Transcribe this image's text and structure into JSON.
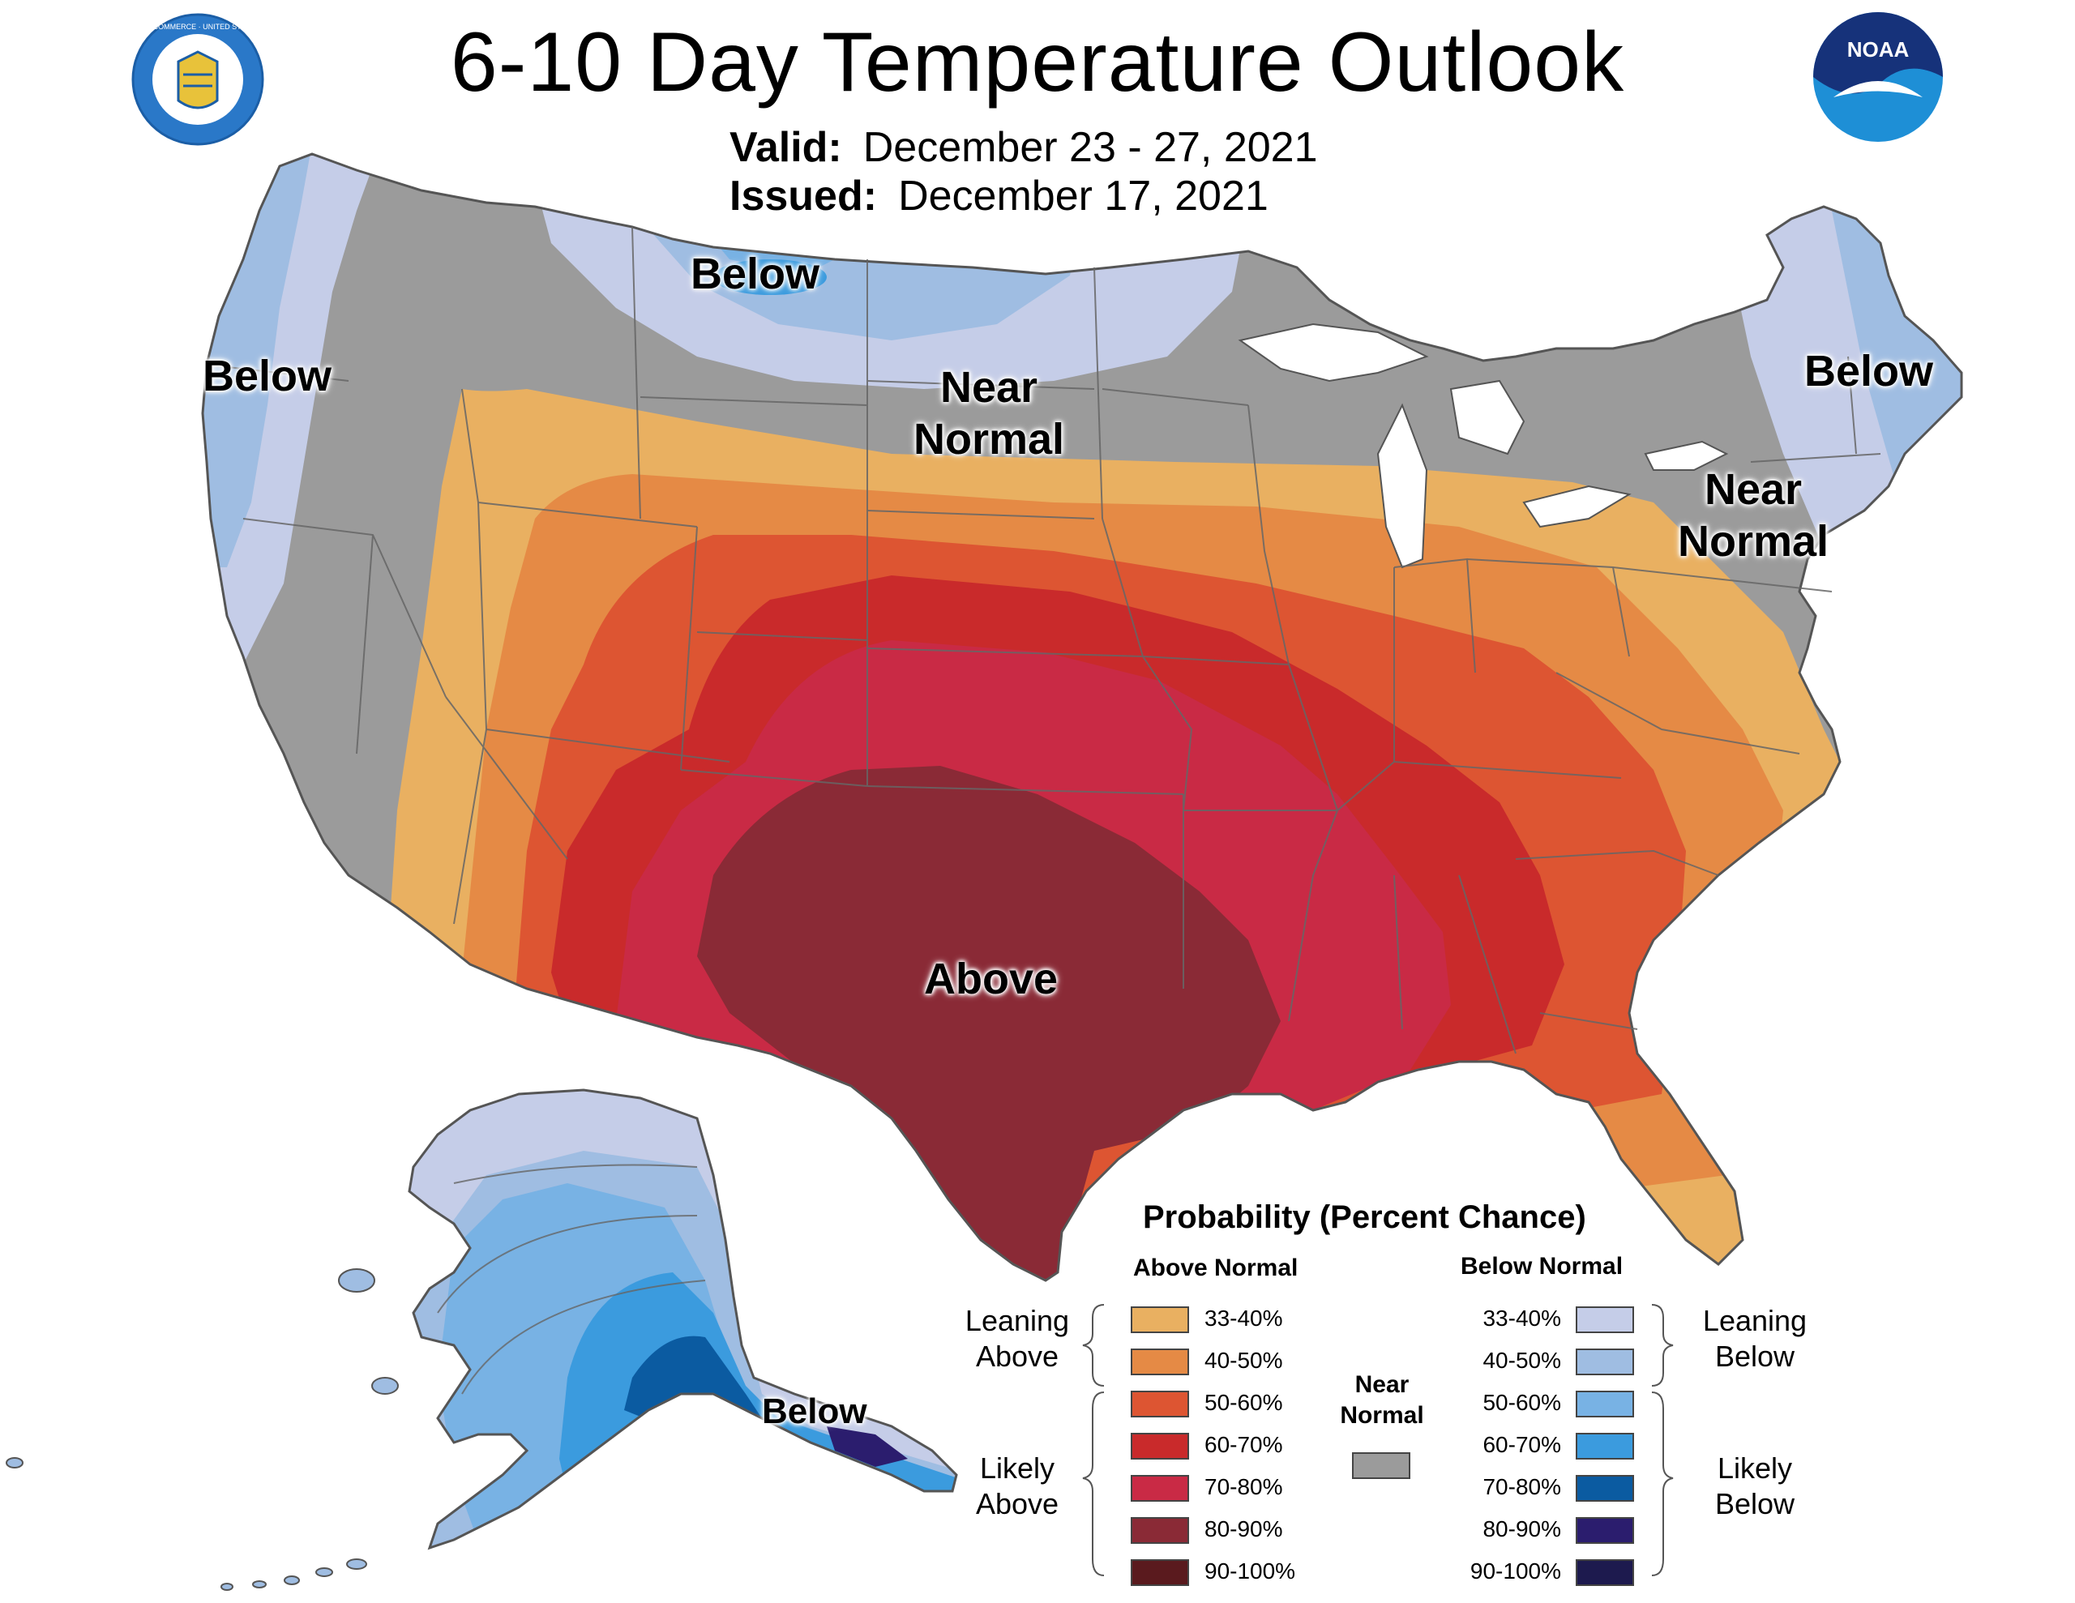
{
  "header": {
    "title": "6-10 Day Temperature Outlook",
    "valid_label": "Valid:",
    "valid_value": "December 23 - 27, 2021",
    "issued_label": "Issued:",
    "issued_value": "December 17, 2021"
  },
  "logos": {
    "left_text": "DEPARTMENT OF COMMERCE · UNITED STATES OF AMERICA",
    "right_text": "NOAA"
  },
  "map_labels": {
    "west_coast": "Below",
    "north_plains": "Below",
    "central_near_line1": "Near",
    "central_near_line2": "Normal",
    "southern_plains": "Above",
    "northeast": "Below",
    "northeast_near_line1": "Near",
    "northeast_near_line2": "Normal",
    "alaska": "Below"
  },
  "legend": {
    "title": "Probability (Percent Chance)",
    "above_header": "Above Normal",
    "below_header": "Below Normal",
    "leaning_above_1": "Leaning",
    "leaning_above_2": "Above",
    "likely_above_1": "Likely",
    "likely_above_2": "Above",
    "leaning_below_1": "Leaning",
    "leaning_below_2": "Below",
    "likely_below_1": "Likely",
    "likely_below_2": "Below",
    "near_1": "Near",
    "near_2": "Normal",
    "near_color": "#9b9b9b",
    "above": [
      {
        "range": "33-40%",
        "color": "#e9b061"
      },
      {
        "range": "40-50%",
        "color": "#e58a45"
      },
      {
        "range": "50-60%",
        "color": "#dd5532"
      },
      {
        "range": "60-70%",
        "color": "#c92a2b"
      },
      {
        "range": "70-80%",
        "color": "#c92a45"
      },
      {
        "range": "80-90%",
        "color": "#8a2a36"
      },
      {
        "range": "90-100%",
        "color": "#5a1a1e"
      }
    ],
    "below": [
      {
        "range": "33-40%",
        "color": "#c5cde8"
      },
      {
        "range": "40-50%",
        "color": "#9fbde2"
      },
      {
        "range": "50-60%",
        "color": "#78b2e4"
      },
      {
        "range": "60-70%",
        "color": "#3b9bde"
      },
      {
        "range": "70-80%",
        "color": "#0b5ba1"
      },
      {
        "range": "80-90%",
        "color": "#2b1d6e"
      },
      {
        "range": "90-100%",
        "color": "#1d1a4e"
      }
    ]
  },
  "colors": {
    "near_normal": "#9b9b9b",
    "border": "#555555",
    "water": "#ffffff"
  }
}
